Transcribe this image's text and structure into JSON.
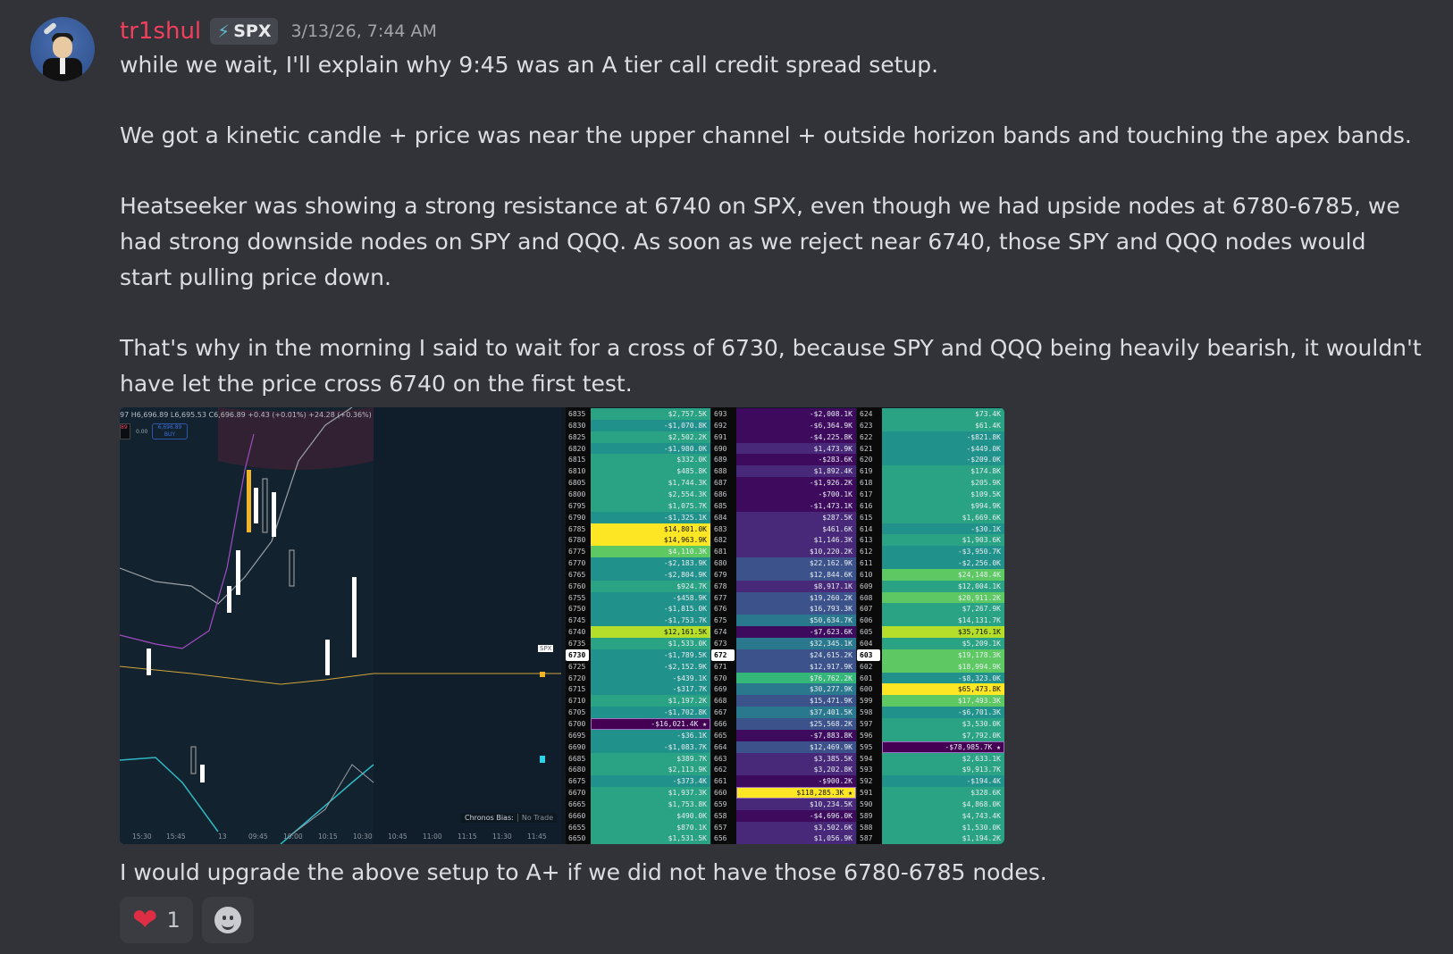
{
  "message": {
    "author": "tr1shul",
    "author_color": "#f23f5e",
    "role_tag": {
      "icon": "lightning-icon",
      "label": "SPX"
    },
    "timestamp": "3/13/26, 7:44 AM",
    "paragraphs": [
      "while we wait, I'll explain why 9:45 was an A tier call credit spread setup.",
      "We got a kinetic candle + price was near the upper channel + outside horizon bands and touching the apex bands.",
      "Heatseeker was showing a strong resistance at 6740 on SPX, even though we had upside nodes at 6780-6785, we had strong downside nodes on SPY and QQQ. As soon as we reject near 6740, those SPY and QQQ nodes would start pulling price down.",
      "That's why in the morning I said to wait for a cross of 6730, because SPY and QQQ being heavily bearish, it wouldn't have let the price cross 6740 on the first test."
    ],
    "footer_text": "I would upgrade the above setup to A+ if we did not have those 6780-6785 nodes."
  },
  "attachment": {
    "chart": {
      "ohlc": "97 H6,696.89 L6,695.53 C6,696.89 +0.43 (+0.01%) +24.28 (+0.36%)",
      "sell_price": "89",
      "spread": "0.00",
      "buy_price": "6,696.89",
      "buy_label": "BUY",
      "symbol_tag": "SPX",
      "x_ticks": [
        "15:30",
        "15:45",
        "13",
        "09:45",
        "10:00",
        "10:15",
        "10:30",
        "10:45",
        "11:00",
        "11:15",
        "11:30",
        "11:45"
      ],
      "bias_label": "Chronos Bias:",
      "bias_value": "No Trade"
    },
    "heatmaps": [
      {
        "name": "SPX",
        "current_strike": "6730",
        "rows": [
          [
            "6835",
            "$2,757.5K"
          ],
          [
            "6830",
            "-$1,070.8K"
          ],
          [
            "6825",
            "$2,502.2K"
          ],
          [
            "6820",
            "-$1,980.0K"
          ],
          [
            "6815",
            "$332.0K"
          ],
          [
            "6810",
            "$485.8K"
          ],
          [
            "6805",
            "$1,744.3K"
          ],
          [
            "6800",
            "$2,554.3K"
          ],
          [
            "6795",
            "$1,075.7K"
          ],
          [
            "6790",
            "-$1,325.1K"
          ],
          [
            "6785",
            "$14,801.0K"
          ],
          [
            "6780",
            "$14,963.9K"
          ],
          [
            "6775",
            "$4,110.3K"
          ],
          [
            "6770",
            "-$2,183.9K"
          ],
          [
            "6765",
            "-$2,804.9K"
          ],
          [
            "6760",
            "$924.7K"
          ],
          [
            "6755",
            "-$458.9K"
          ],
          [
            "6750",
            "-$1,815.0K"
          ],
          [
            "6745",
            "-$1,753.7K"
          ],
          [
            "6740",
            "$12,161.5K"
          ],
          [
            "6735",
            "$1,533.0K"
          ],
          [
            "6730",
            "-$1,789.5K"
          ],
          [
            "6725",
            "-$2,152.9K"
          ],
          [
            "6720",
            "-$439.1K"
          ],
          [
            "6715",
            "-$317.7K"
          ],
          [
            "6710",
            "$1,197.2K"
          ],
          [
            "6705",
            "-$1,702.8K"
          ],
          [
            "6700",
            "-$16,021.4K ★"
          ],
          [
            "6695",
            "-$36.1K"
          ],
          [
            "6690",
            "-$1,083.7K"
          ],
          [
            "6685",
            "$389.7K"
          ],
          [
            "6680",
            "$2,113.9K"
          ],
          [
            "6675",
            "-$373.4K"
          ],
          [
            "6670",
            "$1,937.3K"
          ],
          [
            "6665",
            "$1,753.8K"
          ],
          [
            "6660",
            "$490.0K"
          ],
          [
            "6655",
            "$870.1K"
          ],
          [
            "6650",
            "$1,531.5K"
          ]
        ]
      },
      {
        "name": "QQQ",
        "current_strike": "672",
        "rows": [
          [
            "693",
            "-$2,008.1K"
          ],
          [
            "692",
            "-$6,364.9K"
          ],
          [
            "691",
            "-$4,225.8K"
          ],
          [
            "690",
            "$1,473.9K"
          ],
          [
            "689",
            "-$283.6K"
          ],
          [
            "688",
            "$1,892.4K"
          ],
          [
            "687",
            "-$1,926.2K"
          ],
          [
            "686",
            "-$700.1K"
          ],
          [
            "685",
            "-$1,473.1K"
          ],
          [
            "684",
            "$287.5K"
          ],
          [
            "683",
            "$461.6K"
          ],
          [
            "682",
            "$1,146.3K"
          ],
          [
            "681",
            "$10,220.2K"
          ],
          [
            "680",
            "$22,162.9K"
          ],
          [
            "679",
            "$12,844.6K"
          ],
          [
            "678",
            "$8,917.1K"
          ],
          [
            "677",
            "$19,260.2K"
          ],
          [
            "676",
            "$16,793.3K"
          ],
          [
            "675",
            "$50,634.7K"
          ],
          [
            "674",
            "-$7,623.6K"
          ],
          [
            "673",
            "$32,345.1K"
          ],
          [
            "672",
            "$24,615.2K"
          ],
          [
            "671",
            "$12,917.9K"
          ],
          [
            "670",
            "$76,762.2K"
          ],
          [
            "669",
            "$30,277.9K"
          ],
          [
            "668",
            "$15,471.9K"
          ],
          [
            "667",
            "$37,401.5K"
          ],
          [
            "666",
            "$25,568.2K"
          ],
          [
            "665",
            "-$7,883.8K"
          ],
          [
            "664",
            "$12,469.9K"
          ],
          [
            "663",
            "$3,385.5K"
          ],
          [
            "662",
            "$3,202.8K"
          ],
          [
            "661",
            "-$900.2K"
          ],
          [
            "660",
            "$118,285.3K ★"
          ],
          [
            "659",
            "$10,234.5K"
          ],
          [
            "658",
            "-$4,696.0K"
          ],
          [
            "657",
            "$3,502.6K"
          ],
          [
            "656",
            "$1,056.9K"
          ]
        ]
      },
      {
        "name": "SPY",
        "current_strike": "603",
        "rows": [
          [
            "624",
            "$73.4K"
          ],
          [
            "623",
            "$61.4K"
          ],
          [
            "622",
            "-$821.8K"
          ],
          [
            "621",
            "-$449.0K"
          ],
          [
            "620",
            "-$209.0K"
          ],
          [
            "619",
            "$174.8K"
          ],
          [
            "618",
            "$205.9K"
          ],
          [
            "617",
            "$109.5K"
          ],
          [
            "616",
            "$994.9K"
          ],
          [
            "615",
            "$1,669.6K"
          ],
          [
            "614",
            "-$30.1K"
          ],
          [
            "613",
            "$1,903.6K"
          ],
          [
            "612",
            "-$3,950.7K"
          ],
          [
            "611",
            "-$2,256.0K"
          ],
          [
            "610",
            "$24,148.4K"
          ],
          [
            "609",
            "$12,004.1K"
          ],
          [
            "608",
            "$20,911.2K"
          ],
          [
            "607",
            "$7,267.9K"
          ],
          [
            "606",
            "$14,131.7K"
          ],
          [
            "605",
            "$35,716.1K"
          ],
          [
            "604",
            "$5,209.1K"
          ],
          [
            "603",
            "$19,178.3K"
          ],
          [
            "602",
            "$18,994.9K"
          ],
          [
            "601",
            "-$8,323.0K"
          ],
          [
            "600",
            "$65,473.8K"
          ],
          [
            "599",
            "$17,493.3K"
          ],
          [
            "598",
            "-$6,701.3K"
          ],
          [
            "597",
            "$3,530.0K"
          ],
          [
            "596",
            "$7,792.0K"
          ],
          [
            "595",
            "-$78,985.7K ★"
          ],
          [
            "594",
            "$2,633.1K"
          ],
          [
            "593",
            "$9,913.7K"
          ],
          [
            "592",
            "-$194.4K"
          ],
          [
            "591",
            "$328.6K"
          ],
          [
            "590",
            "$4,868.0K"
          ],
          [
            "589",
            "$4,743.4K"
          ],
          [
            "588",
            "$1,530.0K"
          ],
          [
            "587",
            "$1,194.2K"
          ]
        ]
      }
    ]
  },
  "reactions": [
    {
      "emoji": "heart-icon",
      "glyph": "❤",
      "count": "1"
    }
  ],
  "colors": {
    "background": "#313338",
    "text": "#dbdee1",
    "timestamp": "#a2a5ac",
    "reaction_bg": "#3a3c42"
  }
}
